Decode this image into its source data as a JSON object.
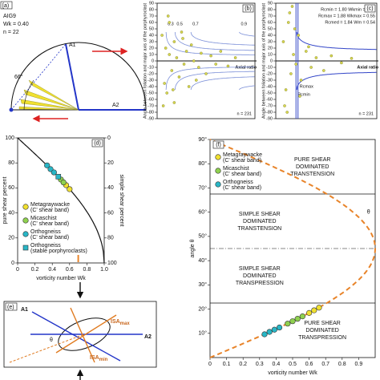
{
  "diagrams": {
    "a": {
      "panel": "[a)",
      "sample": "AIG9",
      "wk": "Wk = 0.40",
      "n": "n = 22",
      "angle": "66°",
      "axis1": "A1",
      "axis2": "A2"
    },
    "e": {
      "panel": "(e)",
      "axis1": "A1",
      "axis2": "A2",
      "isa_max": {
        "main": "ISA",
        "sub": "max"
      },
      "isa_min": {
        "main": "ISA",
        "sub": "min"
      },
      "theta": "θ"
    }
  },
  "chart_data": [
    {
      "type": "scatter",
      "panel": "(b)",
      "y_label": "Angle between foliation and major axis of the porphyroclast",
      "x_label": "Axial ratio",
      "note": "n = 231",
      "xlim": [
        1,
        5
      ],
      "ylim": [
        -90,
        90
      ],
      "yticks": [
        -90,
        -80,
        -70,
        -60,
        -50,
        -40,
        -30,
        -20,
        -10,
        0,
        10,
        20,
        30,
        40,
        50,
        60,
        70,
        80,
        90
      ],
      "color": "#d8d850",
      "x": [
        1.2,
        1.3,
        1.35,
        1.4,
        1.5,
        1.5,
        1.6,
        1.7,
        1.7,
        1.8,
        1.9,
        2.0,
        2.1,
        2.2,
        2.3,
        2.4,
        2.5,
        2.7,
        2.8,
        3.0,
        3.2,
        3.4,
        3.6,
        3.9,
        4.2,
        1.25,
        1.45,
        1.65,
        2.05,
        2.6
      ],
      "values": [
        40,
        -35,
        20,
        -50,
        10,
        60,
        -15,
        30,
        -65,
        5,
        -25,
        45,
        -5,
        15,
        -40,
        25,
        0,
        -10,
        12,
        -20,
        8,
        -5,
        15,
        -8,
        5,
        -70,
        70,
        -45,
        35,
        -30
      ],
      "curve_wk": [
        0.9,
        0.7,
        0.5,
        0.3
      ]
    },
    {
      "type": "scatter",
      "panel": "(c)",
      "y_label": "Angle between foliation and major axis of the porphyroclast",
      "x_label": "Axial ratio",
      "note": "n = 231",
      "xlim": [
        1,
        5
      ],
      "ylim": [
        -90,
        90
      ],
      "yticks": [
        -90,
        -80,
        -70,
        -60,
        -50,
        -40,
        -30,
        -20,
        -10,
        0,
        10,
        20,
        30,
        40,
        50,
        60,
        70,
        80,
        90
      ],
      "color": "#d8d850",
      "x": [
        1.3,
        1.4,
        1.5,
        1.6,
        1.7,
        1.8,
        1.9,
        2.0,
        2.2,
        2.4,
        2.6,
        2.9,
        3.2,
        3.6,
        4.0,
        1.35,
        1.55,
        1.75,
        1.95,
        2.3,
        1.45,
        1.65
      ],
      "values": [
        30,
        -45,
        60,
        -20,
        10,
        -5,
        40,
        -30,
        15,
        -10,
        5,
        -15,
        8,
        -3,
        4,
        -70,
        75,
        50,
        -55,
        22,
        -80,
        85
      ],
      "annotations": [
        "Rcmin = 1.80   Wkmin = 0.52",
        "Rcmax = 1.88   Wkmax = 0.55",
        "Rcmed = 1.84   Wm = 0.54"
      ],
      "rc_lines": [
        1.8,
        1.88
      ],
      "rc_labels": [
        "Rcmin",
        "Rcmax"
      ],
      "wm": 0.54
    },
    {
      "type": "scatter",
      "panel": "(d)",
      "x_label": "vorticity number Wk",
      "y_label": "pure shear percent",
      "y2_label": "simple shear percent",
      "xlim": [
        0,
        1
      ],
      "xticks": [
        0,
        0.2,
        0.4,
        0.6,
        0.8,
        {
          "value": 1,
          "label": "1.0"
        }
      ],
      "ylim": [
        0,
        100
      ],
      "yticks": [
        0,
        20,
        40,
        60,
        80,
        100
      ],
      "y2lim": [
        100,
        0
      ],
      "y2ticks": [
        0,
        20,
        40,
        60,
        80,
        100
      ],
      "marker_x": 0.7,
      "series": [
        {
          "name": "Metagraywacke",
          "note": "(C' shear band)",
          "color": "#f0e030",
          "marker": "circle",
          "x": [
            0.56,
            0.6
          ],
          "values": [
            62.2,
            59
          ]
        },
        {
          "name": "Micaschist",
          "note": "(C' shear band)",
          "color": "#8fd14f",
          "marker": "circle",
          "x": [
            0.5,
            0.53
          ],
          "values": [
            66.7,
            64.4
          ]
        },
        {
          "name": "Orthogneiss",
          "note": "(C' shear band)",
          "color": "#29b6c6",
          "marker": "circle",
          "x": [
            0.34,
            0.38,
            0.42
          ],
          "values": [
            78,
            75,
            72.4
          ]
        },
        {
          "name": "Orthogneiss",
          "note": "(stable porphyroclasts)",
          "color": "#29b6c6",
          "marker": "square",
          "x": [
            0.47
          ],
          "values": [
            69
          ]
        }
      ]
    },
    {
      "type": "scatter",
      "panel": "(f)",
      "x_label": "vorticity number Wk",
      "y_label": "angle θ",
      "xlim": [
        0,
        1
      ],
      "xticks": [
        0,
        0.1,
        0.2,
        0.3,
        0.4,
        0.5,
        0.6,
        0.7,
        0.8,
        0.9
      ],
      "ylim": [
        0,
        90
      ],
      "yticks": [
        {
          "value": 10,
          "label": "10°"
        },
        {
          "value": 20,
          "label": "20°"
        },
        {
          "value": 30,
          "label": "30°"
        },
        {
          "value": 40,
          "label": "40°"
        },
        {
          "value": 50,
          "label": "50°"
        },
        {
          "value": 60,
          "label": "60°"
        },
        {
          "value": 70,
          "label": "70°"
        },
        {
          "value": 80,
          "label": "80°"
        },
        {
          "value": 90,
          "label": "90°"
        }
      ],
      "hlines": [
        22.5,
        45,
        67.5
      ],
      "curve_label": "θ",
      "regions": [
        [
          "PURE SHEAR",
          "DOMINATED",
          "TRANSTENSION"
        ],
        [
          "SIMPLE SHEAR",
          "DOMINATED",
          "TRANSTENSION"
        ],
        [
          "SIMPLE SHEAR",
          "DOMINATED",
          "TRANSPRESSION"
        ],
        [
          "PURE SHEAR",
          "DOMINATED",
          "TRANSPRESSION"
        ]
      ],
      "series": [
        {
          "name": "Metagraywacke",
          "note": "(C' shear band)",
          "color": "#f0e030",
          "marker": "circle",
          "x": [
            0.6,
            0.63,
            0.66
          ],
          "values": [
            18.4,
            19.5,
            20.6
          ]
        },
        {
          "name": "Micaschist",
          "note": "(C' shear band)",
          "color": "#8fd14f",
          "marker": "circle",
          "x": [
            0.47,
            0.5,
            0.53,
            0.56
          ],
          "values": [
            14,
            15,
            16,
            17
          ]
        },
        {
          "name": "Orthogneiss",
          "note": "(C' shear band)",
          "color": "#29b6c6",
          "marker": "circle",
          "x": [
            0.33,
            0.36,
            0.39,
            0.42
          ],
          "values": [
            9.6,
            10.6,
            11.5,
            12.4
          ]
        }
      ]
    }
  ]
}
